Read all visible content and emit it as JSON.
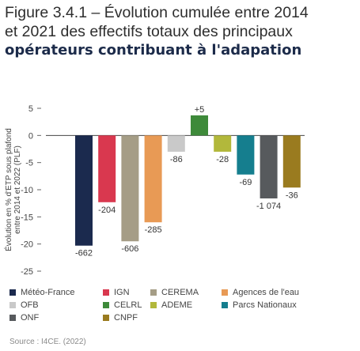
{
  "title": {
    "line1": "Figure 3.4.1 – Évolution cumulée entre 2014",
    "line2": "et 2021 des effectifs totaux des principaux",
    "line3": "opérateurs contribuant à l'adapation"
  },
  "source": "Source : I4CE. (2022)",
  "chart_data": {
    "type": "bar",
    "ylabel": "Évolution en % d'ETP sous plafond entre 2014 et 2022 (PLF)",
    "ylabel_line1": "Évolution en % d'ETP sous plafond",
    "ylabel_line2": "entre 2014 et 2022 (PLF)",
    "ylim": [
      -25,
      5
    ],
    "yticks": [
      5,
      0,
      -5,
      -10,
      -15,
      -20,
      -25
    ],
    "ytick_labels": [
      "5",
      "0",
      "-5",
      "-10",
      "-15",
      "-20",
      "-25"
    ],
    "categories": [
      "Météo-France",
      "IGN",
      "CEREMA",
      "Agences de l'eau",
      "OFB",
      "CELRL",
      "ADEME",
      "Parcs Nationaux",
      "ONF",
      "CNPF"
    ],
    "values": [
      -20.3,
      -12.3,
      -19.5,
      -16.0,
      -3.0,
      3.7,
      -3.0,
      -7.2,
      -11.6,
      -9.6
    ],
    "data_labels": [
      "-662",
      "-204",
      "-606",
      "-285",
      "-86",
      "+5",
      "-28",
      "-69",
      "-1 074",
      "-36"
    ],
    "colors": [
      "#1b2a4e",
      "#d9384f",
      "#a59d86",
      "#e89a55",
      "#c9c9c9",
      "#3e8a3a",
      "#b2b83b",
      "#157e8e",
      "#575a5d",
      "#9a7b1f"
    ]
  }
}
